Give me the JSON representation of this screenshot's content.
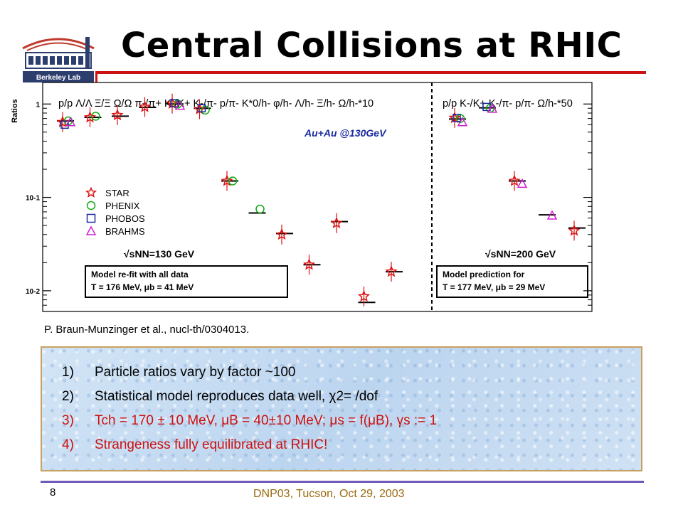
{
  "logo": {
    "text": "Berkeley Lab"
  },
  "title": "Central Collisions at RHIC",
  "citation": "P. Braun-Munzinger et al., nucl-th/0304013.",
  "chart_data": {
    "type": "scatter",
    "ylabel": "Ratios",
    "yscale": "log",
    "ylim": [
      0.006,
      1.7
    ],
    "y_ticks": [
      {
        "value": 1,
        "label": "1"
      },
      {
        "value": 0.1,
        "label": "10-1"
      },
      {
        "value": 0.01,
        "label": "10-2"
      }
    ],
    "panel_left_header": "p/p  Λ/Λ  Ξ/Ξ  Ω/Ω  π-/π+  K-/K+  K-/π-  p/π-  K*0/h-  φ/h-  Λ/h-  Ξ/h-  Ω/h-*10",
    "panel_right_header": "p/p  K-/K+  K-/π-  p/π-  Ω/h-*50",
    "energy_label": "Au+Au @130GeV",
    "legend": [
      "STAR",
      "PHENIX",
      "PHOBOS",
      "BRAHMS"
    ],
    "left_panel": {
      "sqrt_label": "√sNN=130 GeV",
      "model_box": [
        "Model re-fit with all data",
        "T = 176 MeV,    μb = 41 MeV"
      ],
      "model": [
        0.66,
        0.72,
        0.74,
        0.92,
        1.0,
        0.9,
        0.15,
        0.068,
        0.041,
        0.019,
        0.055,
        0.0075,
        0.016
      ],
      "series": [
        {
          "name": "STAR",
          "points": [
            [
              0,
              0.64
            ],
            [
              1,
              0.72
            ],
            [
              2,
              0.76
            ],
            [
              3,
              0.93
            ],
            [
              4,
              1.01
            ],
            [
              5,
              0.88
            ],
            [
              6,
              0.15
            ],
            [
              8,
              0.04
            ],
            [
              9,
              0.019
            ],
            [
              10,
              0.053
            ],
            [
              11,
              0.0087
            ],
            [
              12,
              0.016
            ]
          ]
        },
        {
          "name": "PHENIX",
          "points": [
            [
              0,
              0.66
            ],
            [
              1,
              0.74
            ],
            [
              4,
              1.0
            ],
            [
              5,
              0.86
            ],
            [
              6,
              0.15
            ],
            [
              7,
              0.075
            ]
          ]
        },
        {
          "name": "PHOBOS",
          "points": [
            [
              0,
              0.6
            ],
            [
              4,
              1.02
            ],
            [
              5,
              0.9
            ]
          ]
        },
        {
          "name": "BRAHMS",
          "points": [
            [
              0,
              0.64
            ],
            [
              4,
              0.96
            ]
          ]
        }
      ]
    },
    "right_panel": {
      "sqrt_label": "√sNN=200 GeV",
      "model_box": [
        "Model prediction for",
        "T = 177 MeV,    μb = 29 MeV"
      ],
      "model": [
        0.69,
        0.91,
        0.15,
        0.065,
        0.047
      ],
      "series": [
        {
          "name": "STAR",
          "points": [
            [
              0,
              0.71
            ],
            [
              2,
              0.15
            ],
            [
              4,
              0.044
            ]
          ]
        },
        {
          "name": "PHENIX",
          "points": [
            [
              0,
              0.7
            ],
            [
              1,
              0.9
            ]
          ]
        },
        {
          "name": "PHOBOS",
          "points": [
            [
              0,
              0.71
            ],
            [
              1,
              0.93
            ]
          ]
        },
        {
          "name": "BRAHMS",
          "points": [
            [
              0,
              0.64
            ],
            [
              1,
              0.89
            ],
            [
              2,
              0.14
            ],
            [
              3,
              0.064
            ]
          ]
        }
      ]
    }
  },
  "points": [
    {
      "num": "1)",
      "text": "Particle ratios vary by factor ~100"
    },
    {
      "num": "2)",
      "text": "Statistical model reproduces data well, χ2= /dof"
    },
    {
      "num": "3)",
      "text": "Tch = 170 ± 10 MeV, μB = 40±10 MeV; μs = f(μB), γs := 1"
    },
    {
      "num": "4)",
      "text": "Strangeness fully equilibrated at RHIC!"
    }
  ],
  "footer": {
    "page": "8",
    "text": "DNP03, Tucson, Oct 29, 2003"
  },
  "colors": {
    "star": "#dd1111",
    "phenix": "#11aa11",
    "phobos": "#1a2aa0",
    "brahms": "#cc22cc",
    "title_rule": "#cc1111",
    "footer": "#9a6a10"
  }
}
